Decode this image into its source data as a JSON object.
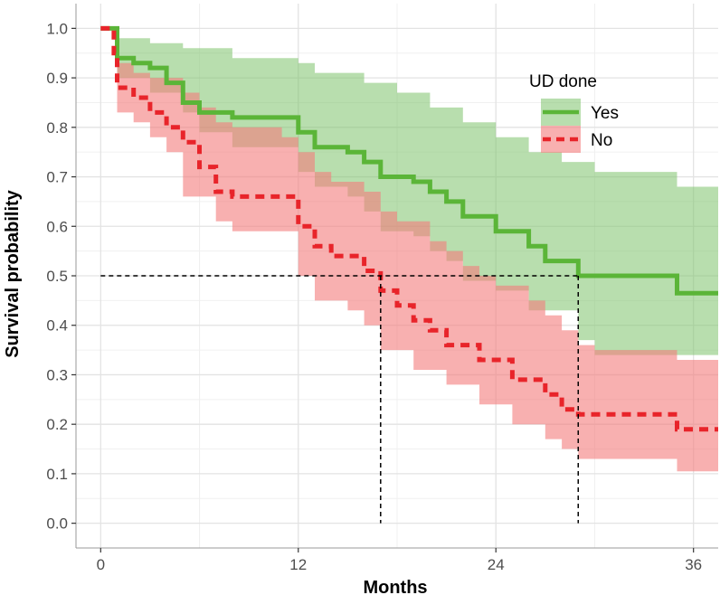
{
  "chart_data": {
    "type": "line",
    "title": "",
    "xlabel": "Months",
    "ylabel": "Survival probability",
    "xlim": [
      -1.5,
      37.5
    ],
    "ylim": [
      -0.05,
      1.05
    ],
    "x_ticks": [
      0,
      12,
      24,
      36
    ],
    "y_ticks": [
      0.0,
      0.1,
      0.2,
      0.3,
      0.4,
      0.5,
      0.6,
      0.7,
      0.8,
      0.9,
      1.0
    ],
    "x_tick_labels": [
      "0",
      "12",
      "24",
      "36"
    ],
    "y_tick_labels": [
      "0.0",
      "0.1",
      "0.2",
      "0.3",
      "0.4",
      "0.5",
      "0.6",
      "0.7",
      "0.8",
      "0.9",
      "1.0"
    ],
    "grid": true,
    "legend": {
      "title": "UD done",
      "position": "top-right",
      "entries": [
        "Yes",
        "No"
      ]
    },
    "series": [
      {
        "name": "Yes",
        "color": "#5bb538",
        "band_color": "#7dc26b",
        "line_style": "solid",
        "steps": [
          [
            0,
            1.0
          ],
          [
            1,
            0.94
          ],
          [
            2,
            0.93
          ],
          [
            3,
            0.92
          ],
          [
            4,
            0.89
          ],
          [
            5,
            0.85
          ],
          [
            6,
            0.83
          ],
          [
            8,
            0.82
          ],
          [
            12,
            0.79
          ],
          [
            13,
            0.76
          ],
          [
            15,
            0.75
          ],
          [
            16,
            0.73
          ],
          [
            17,
            0.7
          ],
          [
            19,
            0.69
          ],
          [
            20,
            0.67
          ],
          [
            21,
            0.65
          ],
          [
            22,
            0.62
          ],
          [
            24,
            0.59
          ],
          [
            26,
            0.56
          ],
          [
            27,
            0.53
          ],
          [
            29,
            0.5
          ],
          [
            35,
            0.465
          ],
          [
            37.5,
            0.465
          ]
        ],
        "ci_upper": [
          [
            0,
            1.0
          ],
          [
            1,
            0.98
          ],
          [
            3,
            0.97
          ],
          [
            5,
            0.96
          ],
          [
            8,
            0.94
          ],
          [
            12,
            0.93
          ],
          [
            13,
            0.91
          ],
          [
            16,
            0.89
          ],
          [
            18,
            0.87
          ],
          [
            20,
            0.84
          ],
          [
            22,
            0.81
          ],
          [
            24,
            0.78
          ],
          [
            26,
            0.75
          ],
          [
            28,
            0.73
          ],
          [
            30,
            0.71
          ],
          [
            35,
            0.68
          ],
          [
            37.5,
            0.68
          ]
        ],
        "ci_lower": [
          [
            0,
            1.0
          ],
          [
            1,
            0.9
          ],
          [
            3,
            0.87
          ],
          [
            5,
            0.83
          ],
          [
            6,
            0.79
          ],
          [
            8,
            0.76
          ],
          [
            12,
            0.71
          ],
          [
            13,
            0.68
          ],
          [
            15,
            0.66
          ],
          [
            16,
            0.63
          ],
          [
            17,
            0.59
          ],
          [
            19,
            0.58
          ],
          [
            20,
            0.55
          ],
          [
            21,
            0.53
          ],
          [
            22,
            0.49
          ],
          [
            24,
            0.47
          ],
          [
            26,
            0.43
          ],
          [
            29,
            0.37
          ],
          [
            30,
            0.34
          ],
          [
            37.5,
            0.34
          ]
        ]
      },
      {
        "name": "No",
        "color": "#e8242a",
        "band_color": "#f47c7c",
        "line_style": "dashed",
        "steps": [
          [
            0,
            1.0
          ],
          [
            0.8,
            0.95
          ],
          [
            1,
            0.88
          ],
          [
            2,
            0.86
          ],
          [
            3,
            0.83
          ],
          [
            4,
            0.8
          ],
          [
            5,
            0.77
          ],
          [
            6,
            0.72
          ],
          [
            7,
            0.67
          ],
          [
            8,
            0.66
          ],
          [
            12,
            0.6
          ],
          [
            13,
            0.56
          ],
          [
            14,
            0.54
          ],
          [
            16,
            0.51
          ],
          [
            17,
            0.47
          ],
          [
            18,
            0.44
          ],
          [
            19,
            0.41
          ],
          [
            20,
            0.39
          ],
          [
            21,
            0.36
          ],
          [
            23,
            0.33
          ],
          [
            25,
            0.29
          ],
          [
            27,
            0.26
          ],
          [
            28,
            0.23
          ],
          [
            29,
            0.22
          ],
          [
            35,
            0.19
          ],
          [
            37.5,
            0.19
          ]
        ],
        "ci_upper": [
          [
            0,
            1.0
          ],
          [
            1,
            0.93
          ],
          [
            2,
            0.91
          ],
          [
            3,
            0.9
          ],
          [
            5,
            0.87
          ],
          [
            6,
            0.84
          ],
          [
            7,
            0.81
          ],
          [
            8,
            0.8
          ],
          [
            11,
            0.78
          ],
          [
            12,
            0.75
          ],
          [
            13,
            0.71
          ],
          [
            14,
            0.69
          ],
          [
            16,
            0.67
          ],
          [
            17,
            0.63
          ],
          [
            18,
            0.61
          ],
          [
            20,
            0.57
          ],
          [
            21,
            0.55
          ],
          [
            22,
            0.52
          ],
          [
            23,
            0.5
          ],
          [
            24,
            0.48
          ],
          [
            26,
            0.45
          ],
          [
            27,
            0.42
          ],
          [
            28,
            0.39
          ],
          [
            29,
            0.36
          ],
          [
            30,
            0.35
          ],
          [
            35,
            0.33
          ],
          [
            37.5,
            0.33
          ]
        ],
        "ci_lower": [
          [
            0,
            1.0
          ],
          [
            1,
            0.83
          ],
          [
            2,
            0.81
          ],
          [
            3,
            0.78
          ],
          [
            4,
            0.75
          ],
          [
            5,
            0.66
          ],
          [
            7,
            0.61
          ],
          [
            8,
            0.59
          ],
          [
            12,
            0.5
          ],
          [
            13,
            0.45
          ],
          [
            15,
            0.43
          ],
          [
            16,
            0.4
          ],
          [
            17,
            0.35
          ],
          [
            19,
            0.31
          ],
          [
            21,
            0.28
          ],
          [
            23,
            0.24
          ],
          [
            25,
            0.2
          ],
          [
            27,
            0.17
          ],
          [
            28,
            0.15
          ],
          [
            29,
            0.13
          ],
          [
            35,
            0.105
          ],
          [
            37.5,
            0.105
          ]
        ]
      }
    ],
    "reference_lines": {
      "median_y": 0.5,
      "median_x": [
        17,
        29
      ]
    }
  }
}
